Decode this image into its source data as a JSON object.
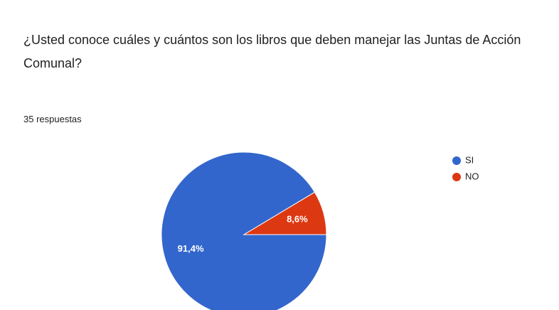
{
  "chart_data": {
    "type": "pie",
    "title": "¿Usted conoce cuáles y cuántos son los libros que deben manejar las Juntas de Acción Comunal?",
    "subtitle": "35 respuestas",
    "categories": [
      "SI",
      "NO"
    ],
    "values": [
      91.4,
      8.6
    ],
    "value_labels": [
      "91,4%",
      "8,6%"
    ],
    "colors": [
      "#3366cc",
      "#dc3912"
    ],
    "legend": "right"
  }
}
